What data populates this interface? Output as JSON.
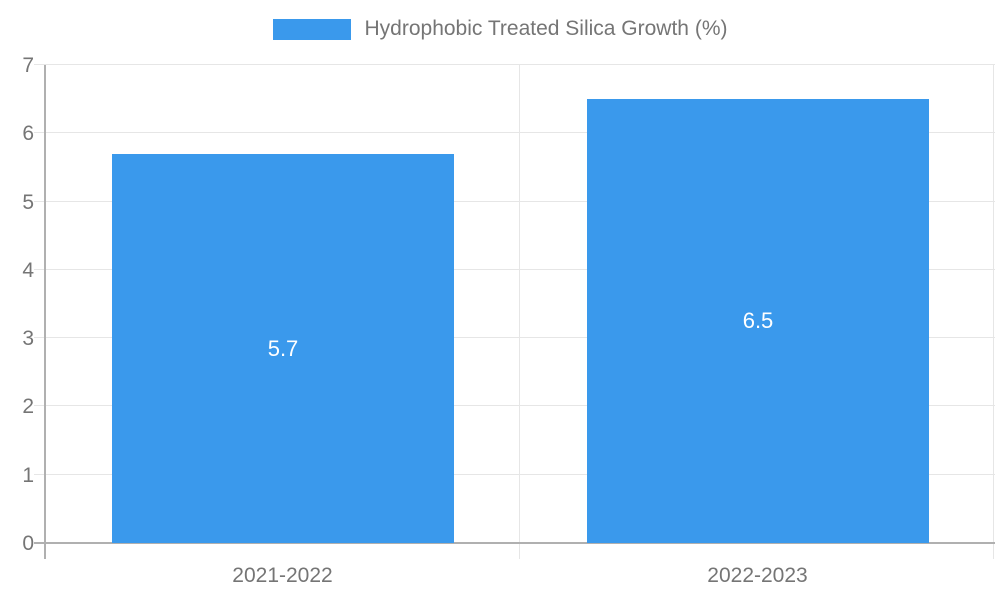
{
  "chart_data": {
    "type": "bar",
    "title": "Hydrophobic Treated Silica Growth (%)",
    "categories": [
      "2021-2022",
      "2022-2023"
    ],
    "values": [
      5.7,
      6.5
    ],
    "bar_labels": [
      "5.7",
      "6.5"
    ],
    "xlabel": "",
    "ylabel": "",
    "ylim": [
      0,
      7
    ],
    "yticks": [
      0,
      1,
      2,
      3,
      4,
      5,
      6,
      7
    ],
    "grid": true,
    "legend_position": "top",
    "colors": {
      "bar": "#3a99ec",
      "legend_swatch": "#3a99ec",
      "axis_text": "#757575",
      "bar_label_text": "#ffffff",
      "gridline": "#e6e6e6",
      "axis_line": "#b0b0b0"
    }
  }
}
